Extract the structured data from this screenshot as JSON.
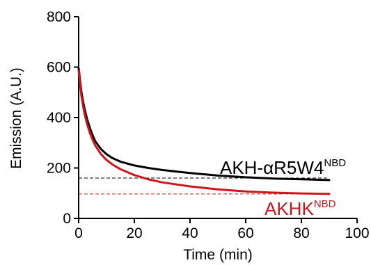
{
  "chart_data": {
    "type": "line",
    "title": "",
    "xlabel": "Time (min)",
    "ylabel": "Emission (A.U.)",
    "xlim": [
      0,
      100
    ],
    "ylim": [
      0,
      800
    ],
    "xticks": [
      0,
      20,
      40,
      60,
      80,
      100
    ],
    "yticks": [
      0,
      200,
      400,
      600,
      800
    ],
    "grid": false,
    "series": [
      {
        "name": "AKH-αR5W4",
        "name_sup": "NBD",
        "color": "#000000",
        "baseline": 160,
        "x": [
          0,
          1,
          2,
          3,
          4,
          5,
          6,
          8,
          10,
          12,
          15,
          20,
          25,
          30,
          40,
          50,
          60,
          70,
          80,
          90
        ],
        "y": [
          595,
          500,
          440,
          395,
          360,
          330,
          305,
          275,
          255,
          240,
          225,
          210,
          200,
          192,
          180,
          170,
          163,
          158,
          155,
          152
        ]
      },
      {
        "name": "AKHK",
        "name_sup": "NBD",
        "color": "#d0141c",
        "baseline": 97,
        "x": [
          0,
          1,
          2,
          3,
          4,
          5,
          6,
          8,
          10,
          12,
          15,
          20,
          25,
          30,
          40,
          50,
          60,
          70,
          80,
          90
        ],
        "y": [
          585,
          485,
          420,
          375,
          340,
          312,
          288,
          255,
          232,
          215,
          195,
          172,
          155,
          143,
          127,
          115,
          107,
          102,
          99,
          97
        ]
      }
    ]
  }
}
